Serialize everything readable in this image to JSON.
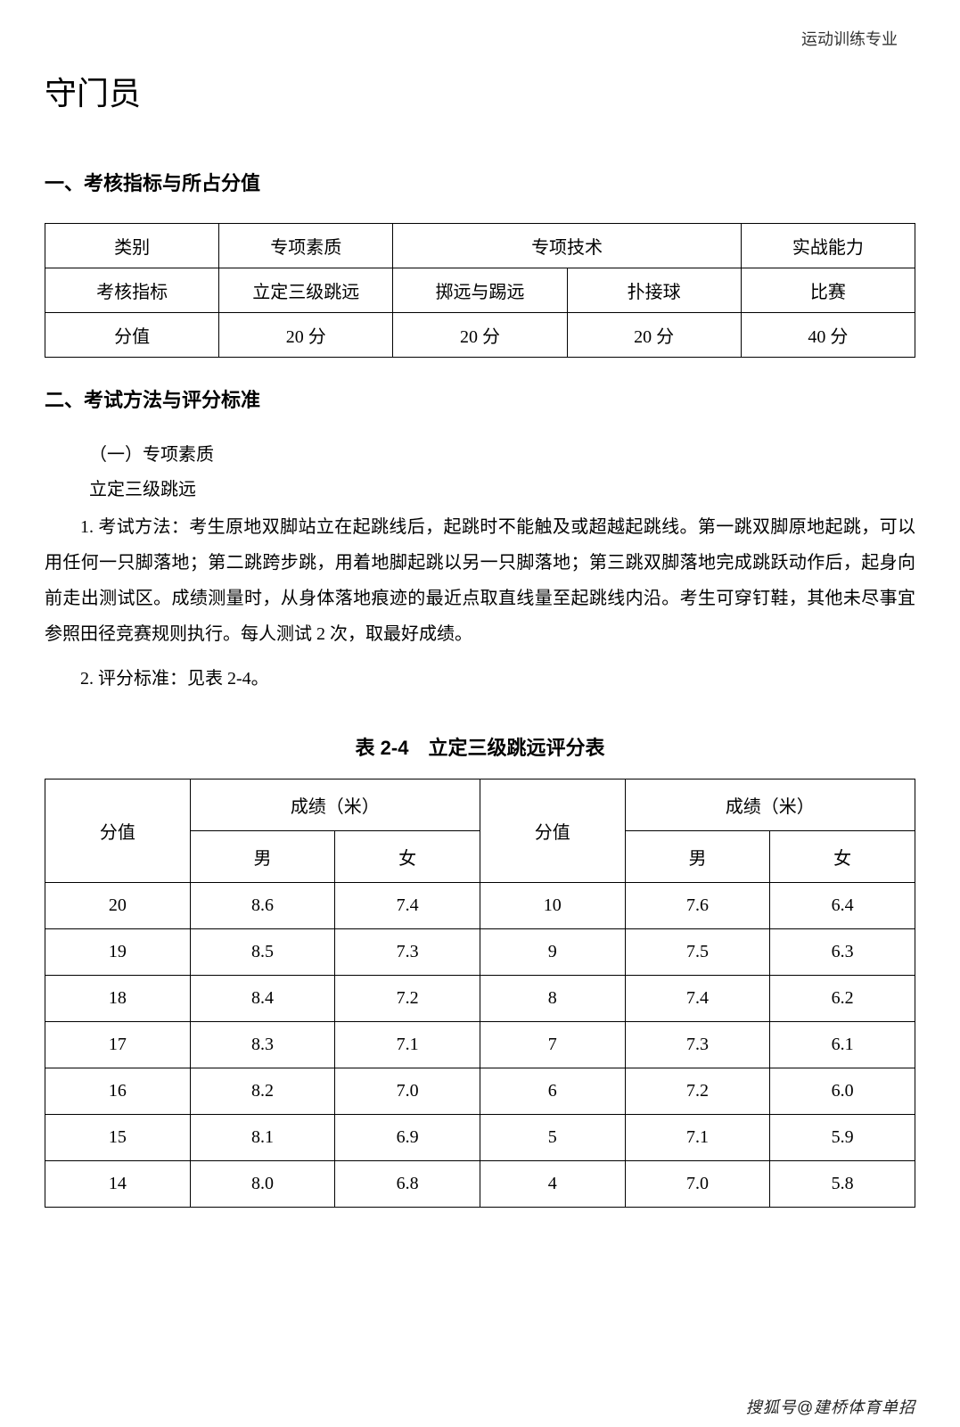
{
  "header": {
    "right_text": "运动训练专业"
  },
  "title": "守门员",
  "section1": {
    "heading": "一、考核指标与所占分值",
    "table": {
      "row1": [
        "类别",
        "专项素质",
        "专项技术",
        "实战能力"
      ],
      "row2": [
        "考核指标",
        "立定三级跳远",
        "掷远与踢远",
        "扑接球",
        "比赛"
      ],
      "row3": [
        "分值",
        "20 分",
        "20 分",
        "20 分",
        "40 分"
      ]
    }
  },
  "section2": {
    "heading": "二、考试方法与评分标准",
    "sub1": "（一）专项素质",
    "sub1_item": "立定三级跳远",
    "method_text": "1. 考试方法：考生原地双脚站立在起跳线后，起跳时不能触及或超越起跳线。第一跳双脚原地起跳，可以用任何一只脚落地；第二跳跨步跳，用着地脚起跳以另一只脚落地；第三跳双脚落地完成跳跃动作后，起身向前走出测试区。成绩测量时，从身体落地痕迹的最近点取直线量至起跳线内沿。考生可穿钉鞋，其他未尽事宜参照田径竞赛规则执行。每人测试 2 次，取最好成绩。",
    "criteria_text": "2. 评分标准：见表 2-4。",
    "table_caption": "表 2-4　立定三级跳远评分表",
    "score_table": {
      "headers": {
        "score": "分值",
        "result": "成绩（米）",
        "male": "男",
        "female": "女"
      },
      "rows": [
        {
          "s1": "20",
          "m1": "8.6",
          "f1": "7.4",
          "s2": "10",
          "m2": "7.6",
          "f2": "6.4"
        },
        {
          "s1": "19",
          "m1": "8.5",
          "f1": "7.3",
          "s2": "9",
          "m2": "7.5",
          "f2": "6.3"
        },
        {
          "s1": "18",
          "m1": "8.4",
          "f1": "7.2",
          "s2": "8",
          "m2": "7.4",
          "f2": "6.2"
        },
        {
          "s1": "17",
          "m1": "8.3",
          "f1": "7.1",
          "s2": "7",
          "m2": "7.3",
          "f2": "6.1"
        },
        {
          "s1": "16",
          "m1": "8.2",
          "f1": "7.0",
          "s2": "6",
          "m2": "7.2",
          "f2": "6.0"
        },
        {
          "s1": "15",
          "m1": "8.1",
          "f1": "6.9",
          "s2": "5",
          "m2": "7.1",
          "f2": "5.9"
        },
        {
          "s1": "14",
          "m1": "8.0",
          "f1": "6.8",
          "s2": "4",
          "m2": "7.0",
          "f2": "5.8"
        }
      ]
    }
  },
  "watermark": "搜狐号@建桥体育单招"
}
